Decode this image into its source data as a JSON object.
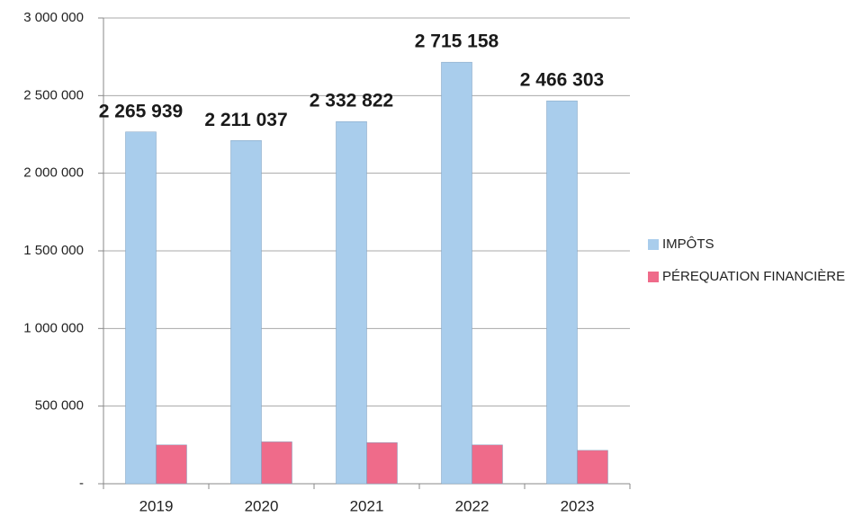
{
  "chart_data": {
    "type": "bar",
    "categories": [
      "2019",
      "2020",
      "2021",
      "2022",
      "2023"
    ],
    "series": [
      {
        "name": "IMPÔTS",
        "color": "#a9cdec",
        "values": [
          2265939,
          2211037,
          2332822,
          2715158,
          2466303
        ],
        "value_labels": [
          "2 265 939",
          "2 211 037",
          "2 332 822",
          "2 715 158",
          "2 466 303"
        ]
      },
      {
        "name": "PÉREQUATION FINANCIÈRE",
        "color": "#ef6b8a",
        "values": [
          250000,
          270000,
          265000,
          250000,
          215000
        ]
      }
    ],
    "ylim": [
      0,
      3000000
    ],
    "yticks": [
      {
        "value": 0,
        "label": "-"
      },
      {
        "value": 500000,
        "label": "500 000"
      },
      {
        "value": 1000000,
        "label": "1 000 000"
      },
      {
        "value": 1500000,
        "label": "1 500 000"
      },
      {
        "value": 2000000,
        "label": "2 000 000"
      },
      {
        "value": 2500000,
        "label": "2 500 000"
      },
      {
        "value": 3000000,
        "label": "3 000 000"
      }
    ],
    "grid": true,
    "legend": "right"
  }
}
